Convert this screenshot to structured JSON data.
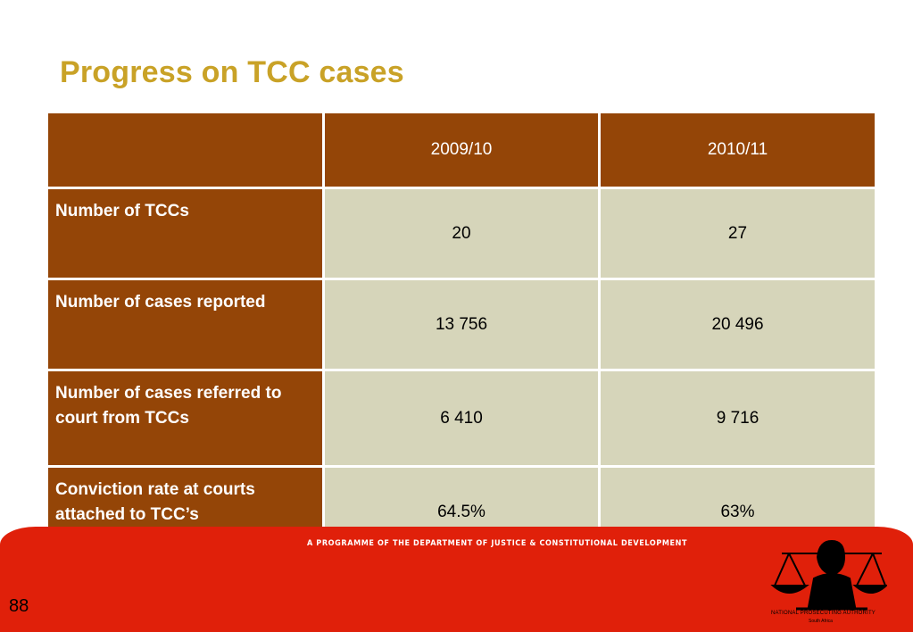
{
  "slide": {
    "title": "Progress on TCC cases",
    "page_number": "88"
  },
  "table": {
    "columns": [
      "",
      "2009/10",
      "2010/11"
    ],
    "rows": [
      {
        "label": "Number of TCCs",
        "values": [
          "20",
          "27"
        ]
      },
      {
        "label": "Number of cases reported",
        "values": [
          "13 756",
          "20 496"
        ]
      },
      {
        "label": "Number of cases referred to court from TCCs",
        "values": [
          "6 410",
          "9 716"
        ]
      },
      {
        "label": "Conviction rate at courts attached to TCC’s",
        "values": [
          "64.5%",
          "63%"
        ]
      }
    ]
  },
  "footer": {
    "programme": "A PROGRAMME OF THE DEPARTMENT OF JUSTICE & CONSTITUTIONAL DEVELOPMENT",
    "logo_name": "NATIONAL PROSECUTING AUTHORITY",
    "logo_sub": "South Africa",
    "logo_icon": "scales-of-justice-icon"
  },
  "colors": {
    "title": "#c9a227",
    "header_brown": "#944507",
    "cell_beige": "#d6d5ba",
    "footer_red": "#e0200a"
  }
}
